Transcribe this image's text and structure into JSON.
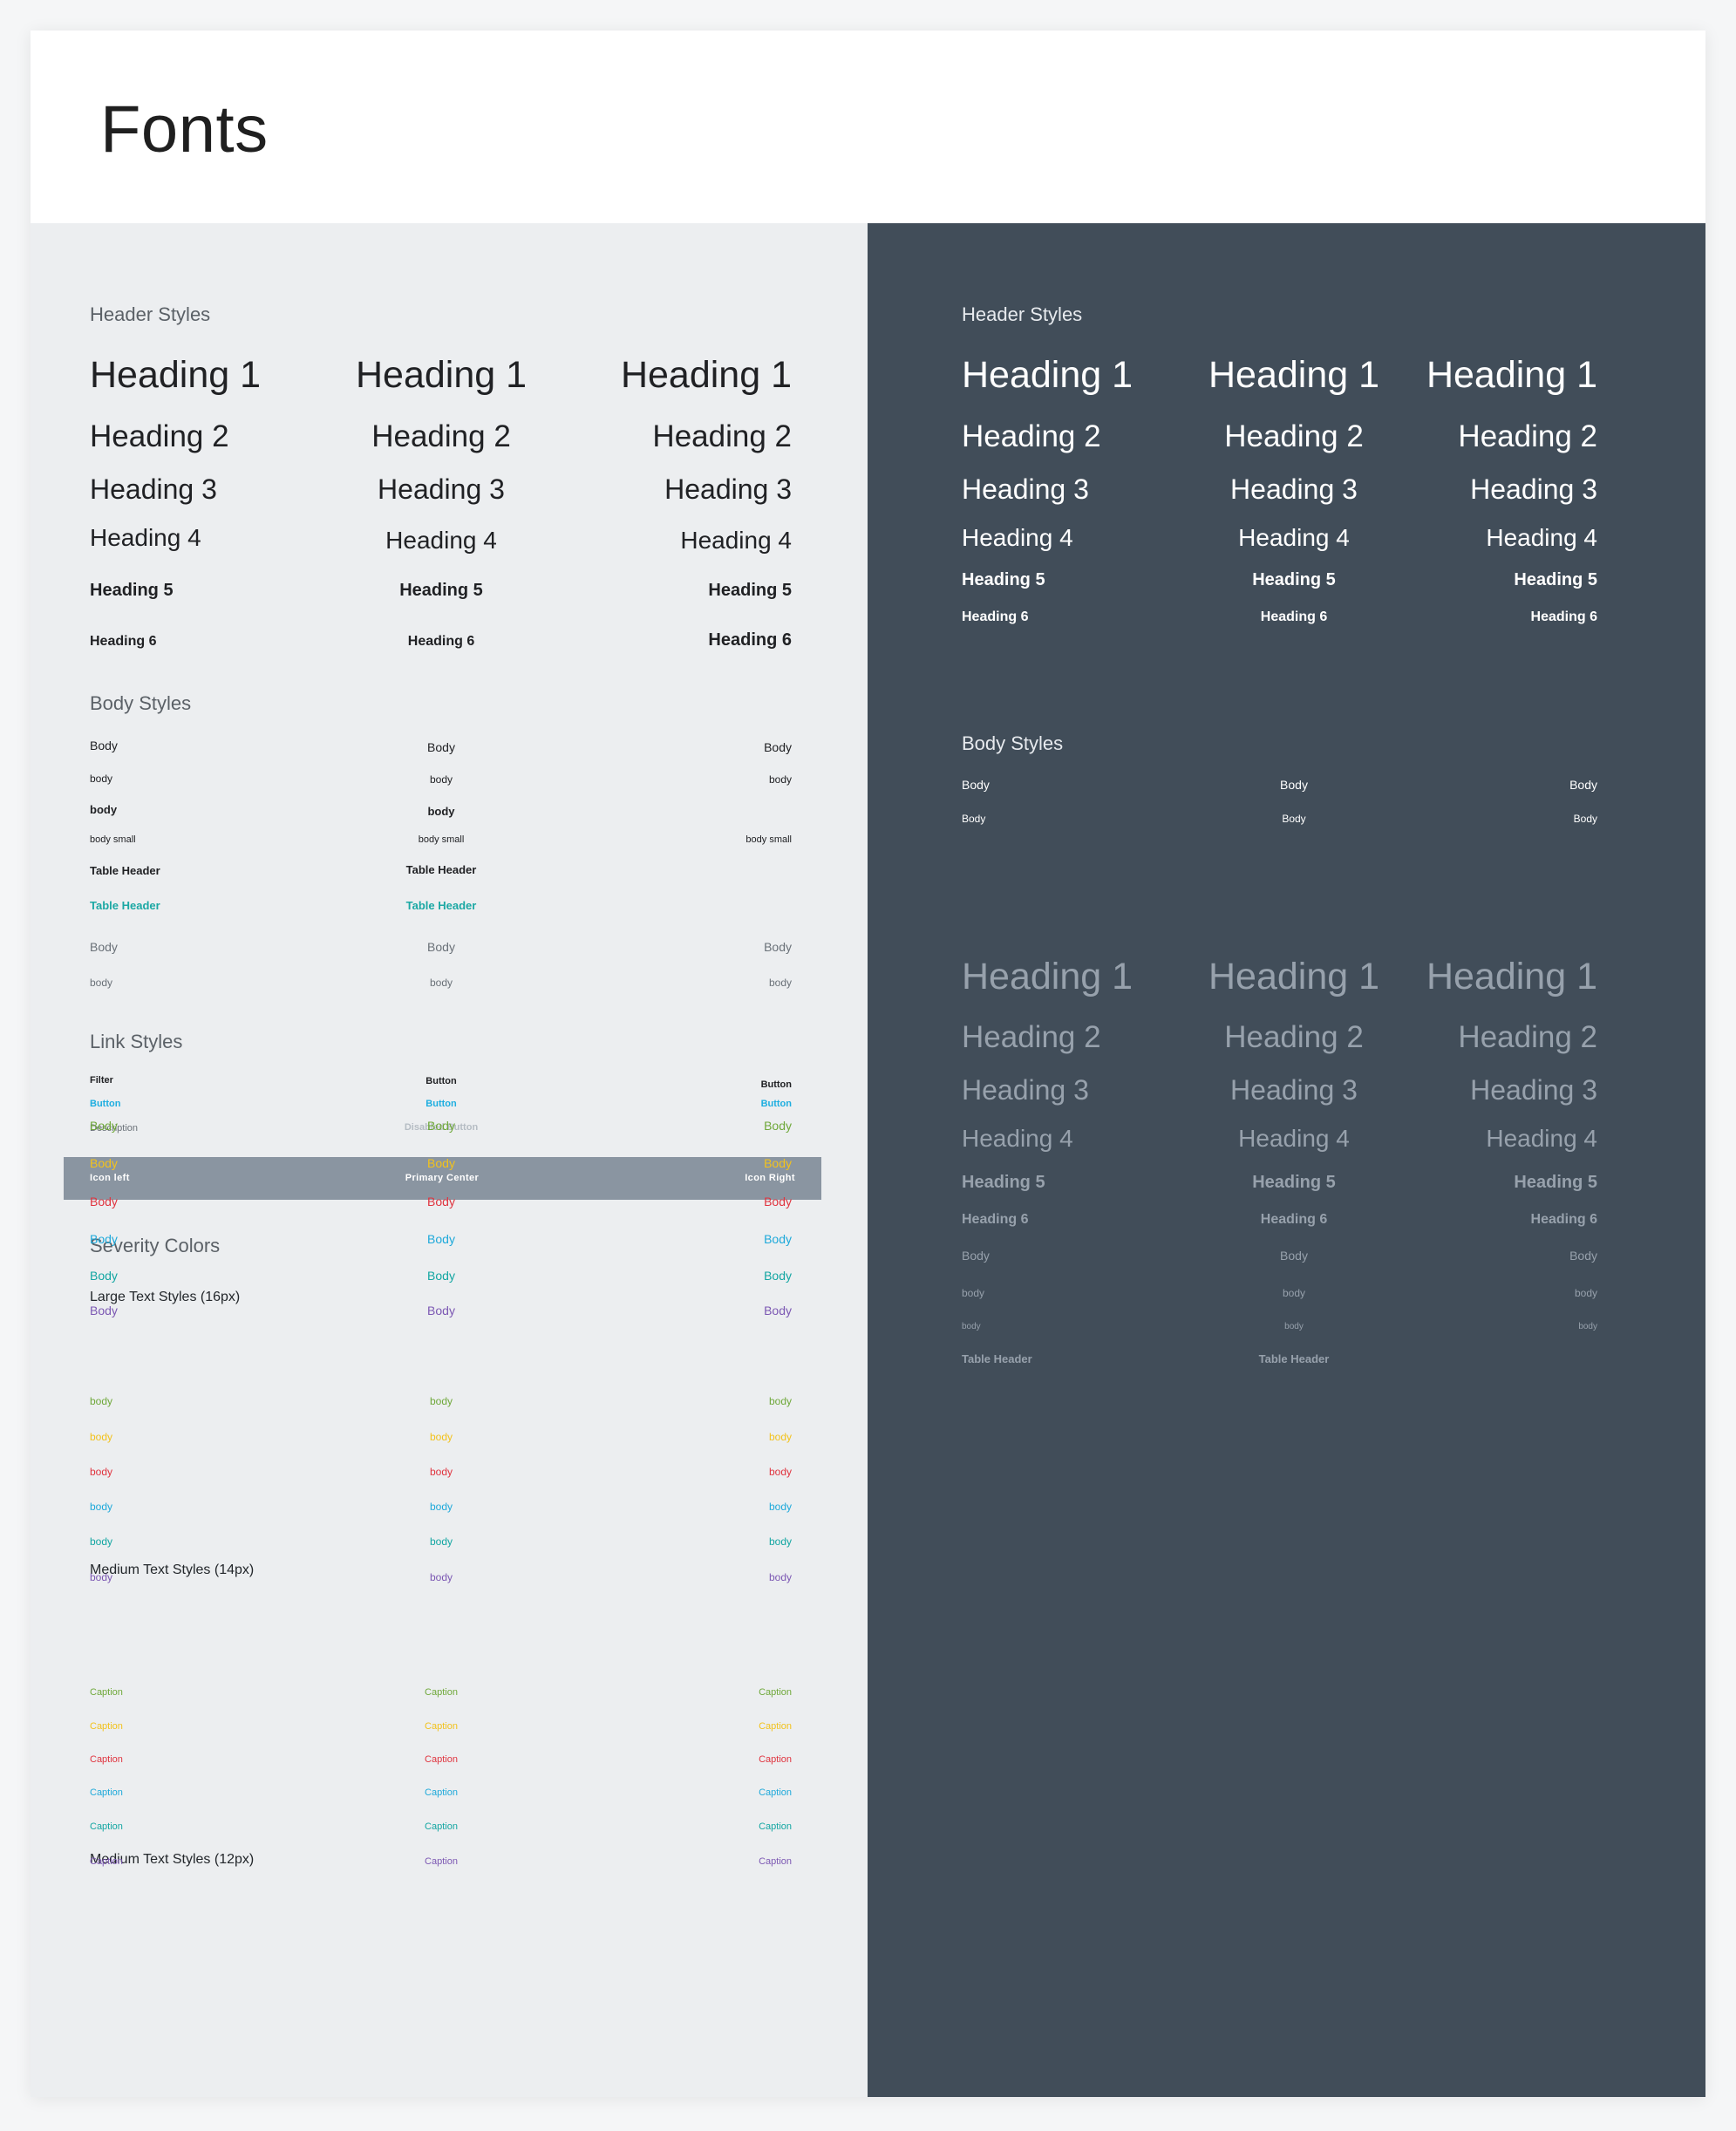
{
  "page_title": "Fonts",
  "colors": {
    "light_bg": "#eceef0",
    "dark_bg": "#414d59",
    "teal": "#1ba8a4",
    "link_blue": "#1eaee0",
    "disabled": "#b5bcc3",
    "toolbar": "#8a95a1",
    "severity": [
      "#6fa83a",
      "#f2c21c",
      "#e0343f",
      "#1ea9da",
      "#13a6a2",
      "#7c58b3"
    ]
  },
  "light": {
    "header_styles": {
      "title": "Header Styles",
      "h1": "Heading 1",
      "h2": "Heading 2",
      "h3": "Heading 3",
      "h4": "Heading 4",
      "h5": "Heading 5",
      "h6": "Heading 6"
    },
    "body_styles": {
      "title": "Body Styles",
      "body_16": "Body",
      "body_14": "body",
      "body_14_bold": "body",
      "body_small": "body small",
      "table_header": "Table Header",
      "table_header_teal": "Table Header",
      "body_muted_16": "Body",
      "body_muted_12": "body"
    },
    "link_styles": {
      "title": "Link Styles",
      "filter": "Filter",
      "button": "Button",
      "button_link": "Button",
      "description": "Description",
      "disabled_button": "Disabled Button"
    },
    "toolbar": {
      "icon_left": "Icon left",
      "primary_center": "Primary Center",
      "icon_right": "Icon Right"
    },
    "severity": {
      "title": "Severity Colors",
      "large_title": "Large Text Styles (16px)",
      "large_label": "Body",
      "medium_title": "Medium Text Styles (14px)",
      "medium_label": "body",
      "small_title": "Medium Text Styles (12px)",
      "small_label": "Caption"
    }
  },
  "dark": {
    "header_styles": {
      "title": "Header Styles",
      "h1": "Heading 1",
      "h2": "Heading 2",
      "h3": "Heading 3",
      "h4": "Heading 4",
      "h5": "Heading 5",
      "h6": "Heading 6"
    },
    "body_styles": {
      "title": "Body Styles",
      "body_16": "Body",
      "body_12": "Body"
    },
    "muted": {
      "h1": "Heading 1",
      "h2": "Heading 2",
      "h3": "Heading 3",
      "h4": "Heading 4",
      "h5": "Heading 5",
      "h6": "Heading 6",
      "body_16": "Body",
      "body_13": "body",
      "body_11": "body",
      "table_header": "Table Header"
    }
  }
}
